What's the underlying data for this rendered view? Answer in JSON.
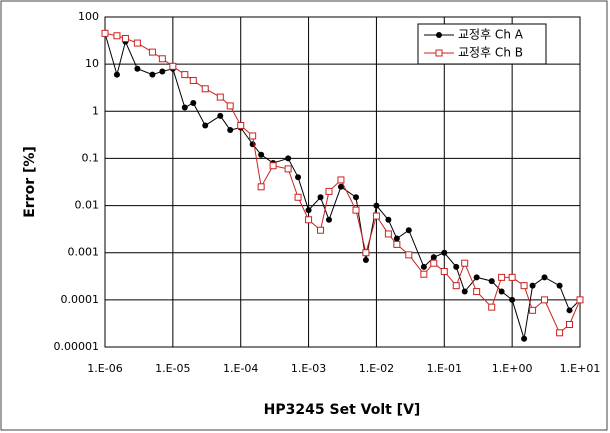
{
  "chart_data": {
    "type": "line",
    "x_label": "HP3245 Set Volt [V]",
    "y_label": "Error [%]",
    "x": [
      1e-06,
      1.5e-06,
      2e-06,
      3e-06,
      5e-06,
      7e-06,
      1e-05,
      1.5e-05,
      2e-05,
      3e-05,
      5e-05,
      7e-05,
      0.0001,
      0.00015,
      0.0002,
      0.0003,
      0.0005,
      0.0007,
      0.001,
      0.0015,
      0.002,
      0.003,
      0.005,
      0.007,
      0.01,
      0.015,
      0.02,
      0.03,
      0.05,
      0.07,
      0.1,
      0.15,
      0.2,
      0.3,
      0.5,
      0.7,
      1,
      1.5,
      2,
      3,
      5,
      7,
      10
    ],
    "series": [
      {
        "name": "교정후 Ch A",
        "color": "#000000",
        "marker": "circle",
        "values": [
          45,
          6,
          30,
          8,
          6,
          7,
          8,
          1.2,
          1.5,
          0.5,
          0.8,
          0.4,
          0.45,
          0.2,
          0.12,
          0.08,
          0.1,
          0.04,
          0.008,
          0.015,
          0.005,
          0.025,
          0.015,
          0.0007,
          0.01,
          0.005,
          0.002,
          0.003,
          0.0005,
          0.0008,
          0.001,
          0.0005,
          0.00015,
          0.0003,
          0.00025,
          0.00015,
          0.0001,
          1.5e-05,
          0.0002,
          0.0003,
          0.0002,
          6e-05,
          0.0001
        ]
      },
      {
        "name": "교정후 Ch B",
        "color": "#cc2222",
        "marker": "square",
        "values": [
          45,
          40,
          35,
          28,
          18,
          13,
          9,
          6,
          4.5,
          3,
          2,
          1.3,
          0.5,
          0.3,
          0.025,
          0.07,
          0.06,
          0.015,
          0.005,
          0.003,
          0.02,
          0.035,
          0.008,
          0.001,
          0.006,
          0.0025,
          0.0015,
          0.0009,
          0.00035,
          0.0006,
          0.0004,
          0.0002,
          0.0006,
          0.00015,
          7e-05,
          0.0003,
          0.0003,
          0.0002,
          6e-05,
          0.0001,
          2e-05,
          3e-05,
          0.0001
        ]
      }
    ],
    "xlim": [
      1e-06,
      10
    ],
    "ylim": [
      1e-05,
      100
    ],
    "log_x": true,
    "log_y": true,
    "grid": true,
    "xticks": [
      {
        "value": 1e-06,
        "label": "1.E-06"
      },
      {
        "value": 1e-05,
        "label": "1.E-05"
      },
      {
        "value": 0.0001,
        "label": "1.E-04"
      },
      {
        "value": 0.001,
        "label": "1.E-03"
      },
      {
        "value": 0.01,
        "label": "1.E-02"
      },
      {
        "value": 0.1,
        "label": "1.E-01"
      },
      {
        "value": 1,
        "label": "1.E+00"
      },
      {
        "value": 10,
        "label": "1.E+01"
      }
    ],
    "yticks": [
      1e-05,
      0.0001,
      0.001,
      0.01,
      0.1,
      1,
      10,
      100
    ],
    "legend": "top-right"
  }
}
